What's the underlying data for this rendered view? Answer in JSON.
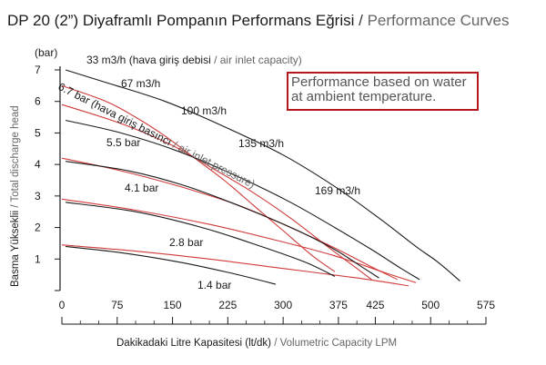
{
  "header": {
    "title_tr": "DP 20 (2”) Diyaframlı Pompanın Performans Eğrisi",
    "separator": "/",
    "title_en": "Performance Curves"
  },
  "note": {
    "line1": "Performance based on water",
    "line2": "at ambient temperature."
  },
  "colors": {
    "flow_curve": "#d03a3a",
    "pressure_curve": "#1a1a1a",
    "note_border": "#b5171f"
  },
  "chart_data": {
    "type": "line",
    "title": "Performance Curves",
    "y_unit": "(bar)",
    "xlabel_tr": "Dakikadaki Litre Kapasitesi (lt/dk)",
    "xlabel_en": "/ Volumetric Capacity LPM",
    "ylabel_tr": "Basma Yükseklii",
    "ylabel_en": "/ Total discharge head",
    "xlim": [
      0,
      575
    ],
    "ylim": [
      0,
      7
    ],
    "x_ticks": [
      "0",
      "75",
      "150",
      "225",
      "300",
      "375",
      "425",
      "500",
      "575"
    ],
    "x_tick_values": [
      0,
      75,
      150,
      225,
      300,
      375,
      425,
      500,
      575
    ],
    "y_ticks": [
      "1",
      "2",
      "3",
      "4",
      "5",
      "6",
      "7"
    ],
    "y_tick_values": [
      1,
      2,
      3,
      4,
      5,
      6,
      7
    ],
    "air_flow_series": [
      {
        "name": "33 m3/h",
        "points": [
          [
            0,
            6.5
          ],
          [
            60,
            6.0
          ],
          [
            100,
            5.5
          ],
          [
            140,
            4.9
          ],
          [
            180,
            4.2
          ],
          [
            220,
            3.5
          ],
          [
            260,
            2.7
          ],
          [
            300,
            1.9
          ],
          [
            340,
            1.1
          ],
          [
            370,
            0.6
          ]
        ]
      },
      {
        "name": "67 m3/h",
        "points": [
          [
            0,
            5.9
          ],
          [
            80,
            5.3
          ],
          [
            150,
            4.6
          ],
          [
            210,
            3.8
          ],
          [
            260,
            3.1
          ],
          [
            310,
            2.3
          ],
          [
            360,
            1.4
          ],
          [
            400,
            0.7
          ],
          [
            420,
            0.35
          ]
        ]
      },
      {
        "name": "100 m3/h",
        "points": [
          [
            0,
            4.2
          ],
          [
            80,
            3.8
          ],
          [
            160,
            3.3
          ],
          [
            240,
            2.7
          ],
          [
            310,
            2.0
          ],
          [
            370,
            1.35
          ],
          [
            420,
            0.75
          ],
          [
            455,
            0.35
          ]
        ]
      },
      {
        "name": "135 m3/h",
        "points": [
          [
            0,
            2.9
          ],
          [
            100,
            2.55
          ],
          [
            200,
            2.1
          ],
          [
            290,
            1.6
          ],
          [
            370,
            1.1
          ],
          [
            440,
            0.55
          ],
          [
            480,
            0.25
          ]
        ]
      },
      {
        "name": "169 m3/h",
        "points": [
          [
            0,
            1.45
          ],
          [
            100,
            1.25
          ],
          [
            200,
            1.0
          ],
          [
            300,
            0.7
          ],
          [
            400,
            0.4
          ],
          [
            470,
            0.15
          ]
        ]
      }
    ],
    "air_flow_labels": [
      "33 m3/h (hava giriş debisi",
      "/ air inlet capacity)",
      "67 m3/h",
      "100 m3/h",
      "135 m3/h",
      "169 m3/h"
    ],
    "air_pressure_series": [
      {
        "name": "6.7 bar",
        "points": [
          [
            5,
            7.0
          ],
          [
            60,
            6.6
          ],
          [
            140,
            6.0
          ],
          [
            220,
            5.2
          ],
          [
            300,
            4.3
          ],
          [
            370,
            3.3
          ],
          [
            430,
            2.3
          ],
          [
            480,
            1.4
          ],
          [
            510,
            0.9
          ],
          [
            540,
            0.3
          ]
        ]
      },
      {
        "name": "5.5 bar",
        "points": [
          [
            5,
            5.4
          ],
          [
            80,
            5.0
          ],
          [
            160,
            4.4
          ],
          [
            240,
            3.6
          ],
          [
            310,
            2.8
          ],
          [
            370,
            2.0
          ],
          [
            420,
            1.3
          ],
          [
            460,
            0.7
          ],
          [
            485,
            0.35
          ]
        ]
      },
      {
        "name": "4.1 bar",
        "points": [
          [
            5,
            4.1
          ],
          [
            90,
            3.8
          ],
          [
            170,
            3.3
          ],
          [
            250,
            2.6
          ],
          [
            320,
            1.9
          ],
          [
            370,
            1.3
          ],
          [
            410,
            0.7
          ],
          [
            430,
            0.4
          ]
        ]
      },
      {
        "name": "2.8 bar",
        "points": [
          [
            5,
            2.8
          ],
          [
            100,
            2.5
          ],
          [
            190,
            2.0
          ],
          [
            270,
            1.4
          ],
          [
            330,
            0.9
          ],
          [
            370,
            0.45
          ]
        ]
      },
      {
        "name": "1.4 bar",
        "points": [
          [
            5,
            1.4
          ],
          [
            80,
            1.2
          ],
          [
            160,
            0.9
          ],
          [
            230,
            0.55
          ],
          [
            290,
            0.2
          ]
        ]
      }
    ],
    "pressure_labels": [
      "6.7 bar (hava giriş basıncı",
      "/ air inlet pressure)",
      "5.5 bar",
      "4.1 bar",
      "2.8 bar",
      "1.4 bar"
    ]
  }
}
